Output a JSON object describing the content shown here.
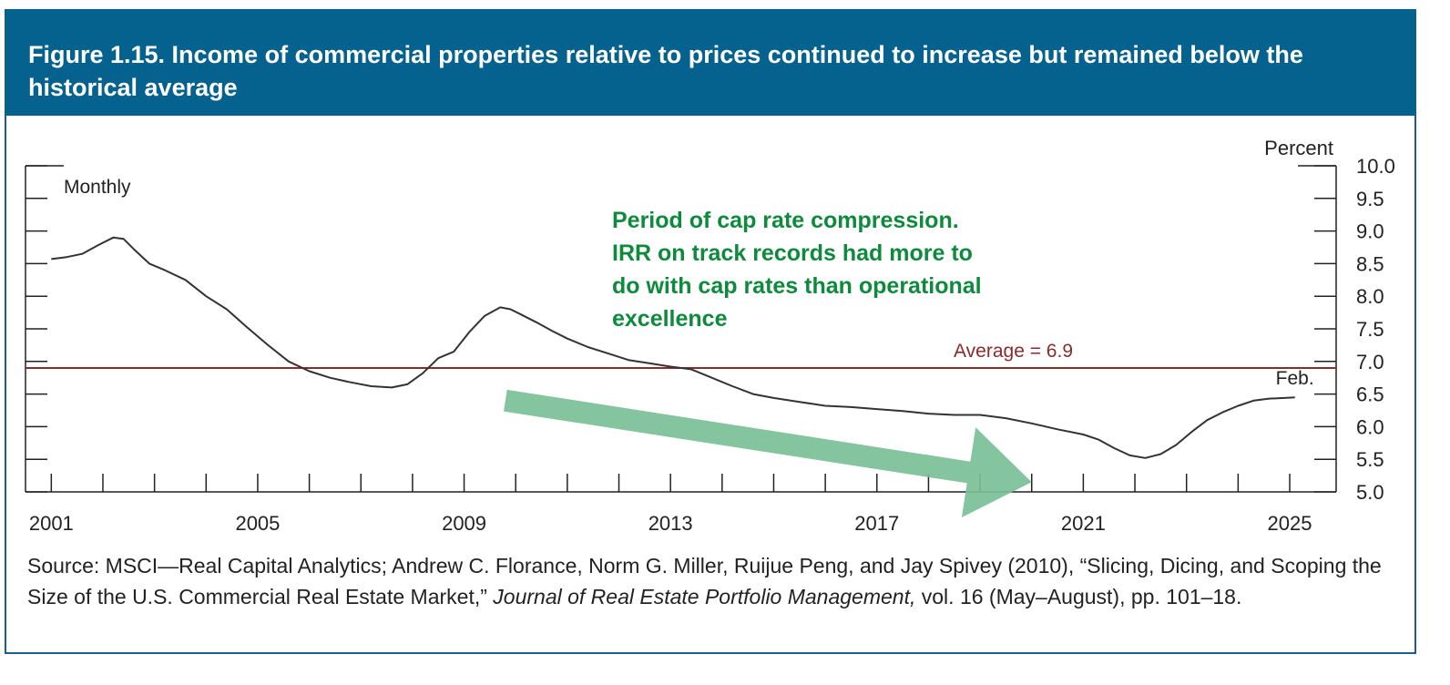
{
  "figure": {
    "title": "Figure 1.15. Income of commercial properties relative to prices continued to increase but remained below the historical average",
    "source_prefix": "Source: MSCI—Real Capital Analytics; Andrew C. Florance, Norm G. Miller, Ruijue Peng, and Jay Spivey (2010), “Slicing, Dicing, and Scoping the Size of the U.S. Commercial Real Estate Market,” ",
    "source_journal": "Journal of Real Estate Portfolio Management,",
    "source_suffix": " vol. 16 (May–August), pp. 101–18."
  },
  "colors": {
    "header_bg": "#05628f",
    "series_line": "#333333",
    "average_line": "#8b2b2b",
    "annotation_text": "#0e8a3c",
    "arrow_fill": "#79bf97"
  },
  "chart_data": {
    "type": "line",
    "title": "",
    "xlabel": "",
    "ylabel": "Percent",
    "frequency_label": "Monthly",
    "x_tick_labels": [
      "2001",
      "2005",
      "2009",
      "2013",
      "2017",
      "2021",
      "2025"
    ],
    "xlim": [
      2000.5,
      2025.9
    ],
    "ylim": [
      5.0,
      10.0
    ],
    "y_ticks": [
      "5.0",
      "5.5",
      "6.0",
      "6.5",
      "7.0",
      "7.5",
      "8.0",
      "8.5",
      "9.0",
      "9.5",
      "10.0"
    ],
    "y_axis_side": "right",
    "grid": false,
    "series": [
      {
        "x": [
          2001.0,
          2001.3,
          2001.6,
          2001.9,
          2002.2,
          2002.4,
          2002.6,
          2002.9,
          2003.2,
          2003.6,
          2004.0,
          2004.4,
          2004.8,
          2005.2,
          2005.6,
          2006.0,
          2006.4,
          2006.8,
          2007.2,
          2007.6,
          2007.9,
          2008.2,
          2008.5,
          2008.8,
          2009.1,
          2009.4,
          2009.7,
          2009.9,
          2010.1,
          2010.4,
          2010.7,
          2011.0,
          2011.4,
          2011.8,
          2012.2,
          2012.6,
          2013.0,
          2013.4,
          2013.8,
          2014.2,
          2014.6,
          2015.0,
          2015.5,
          2016.0,
          2016.5,
          2017.0,
          2017.5,
          2018.0,
          2018.5,
          2019.0,
          2019.5,
          2020.0,
          2020.5,
          2021.0,
          2021.3,
          2021.6,
          2021.9,
          2022.2,
          2022.5,
          2022.8,
          2023.1,
          2023.4,
          2023.7,
          2024.0,
          2024.3,
          2024.6,
          2024.9,
          2025.1
        ],
        "values": [
          8.57,
          8.6,
          8.65,
          8.78,
          8.9,
          8.88,
          8.72,
          8.5,
          8.4,
          8.25,
          8.0,
          7.8,
          7.52,
          7.25,
          7.0,
          6.85,
          6.75,
          6.68,
          6.62,
          6.6,
          6.65,
          6.82,
          7.05,
          7.15,
          7.45,
          7.7,
          7.83,
          7.8,
          7.72,
          7.6,
          7.47,
          7.35,
          7.22,
          7.12,
          7.02,
          6.97,
          6.92,
          6.88,
          6.75,
          6.62,
          6.5,
          6.44,
          6.38,
          6.32,
          6.3,
          6.27,
          6.24,
          6.2,
          6.18,
          6.18,
          6.13,
          6.05,
          5.96,
          5.88,
          5.8,
          5.67,
          5.56,
          5.52,
          5.58,
          5.72,
          5.92,
          6.1,
          6.22,
          6.32,
          6.4,
          6.43,
          6.44,
          6.45
        ]
      }
    ],
    "reference_line": {
      "value": 6.9,
      "label": "Average = 6.9"
    },
    "end_label": "Feb.",
    "annotation": "Period of cap rate compression. IRR on track records had more to do with cap rates than operational excellence",
    "annotation_arrow": {
      "from": [
        2009.8,
        6.4
      ],
      "to": [
        2020.0,
        5.15
      ]
    }
  }
}
